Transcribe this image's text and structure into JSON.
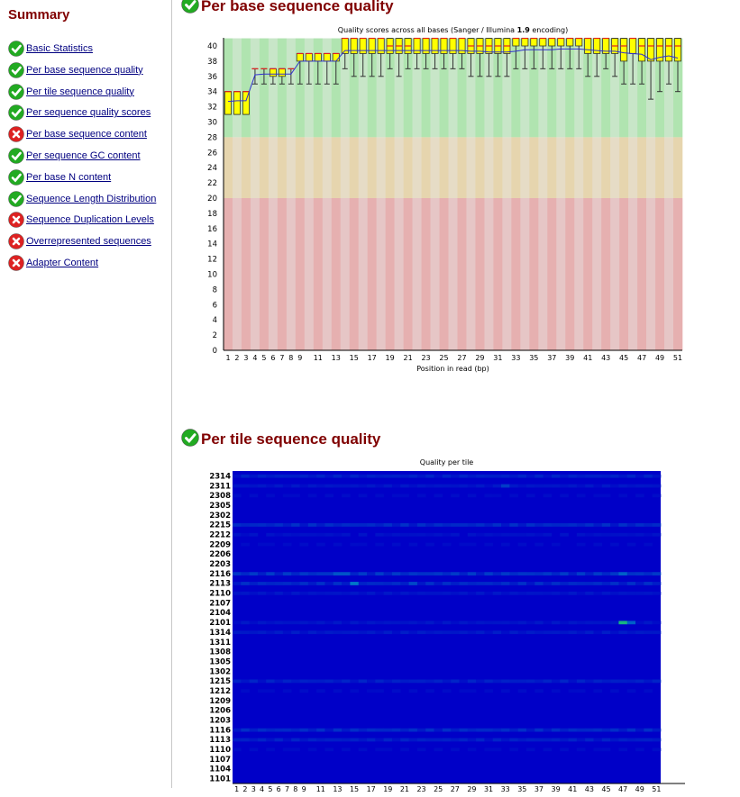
{
  "sidebar": {
    "title": "Summary",
    "items": [
      {
        "label": "Basic Statistics",
        "status": "pass"
      },
      {
        "label": "Per base sequence quality",
        "status": "pass"
      },
      {
        "label": "Per tile sequence quality",
        "status": "pass"
      },
      {
        "label": "Per sequence quality scores",
        "status": "pass"
      },
      {
        "label": "Per base sequence content",
        "status": "fail"
      },
      {
        "label": "Per sequence GC content",
        "status": "pass"
      },
      {
        "label": "Per base N content",
        "status": "pass"
      },
      {
        "label": "Sequence Length Distribution",
        "status": "pass"
      },
      {
        "label": "Sequence Duplication Levels",
        "status": "fail"
      },
      {
        "label": "Overrepresented sequences",
        "status": "fail"
      },
      {
        "label": "Adapter Content",
        "status": "fail"
      }
    ]
  },
  "colors": {
    "pass": "#22aa22",
    "fail": "#dd2222",
    "heading": "#800000",
    "link": "#000080",
    "box": "#ffff00",
    "median": "#e02020",
    "mean": "#3030d0"
  },
  "sections": [
    {
      "title": "Per base sequence quality",
      "status": "pass"
    },
    {
      "title": "Per tile sequence quality",
      "status": "pass"
    }
  ],
  "chart_data": [
    {
      "type": "boxplot",
      "title_pre": "Quality scores across all bases (Sanger / Illumina ",
      "title_bold": "1.9",
      "title_post": " encoding)",
      "xlabel": "Position in read (bp)",
      "ylabel": "",
      "ylim": [
        0,
        41
      ],
      "yticks": [
        0,
        2,
        4,
        6,
        8,
        10,
        12,
        14,
        16,
        18,
        20,
        22,
        24,
        26,
        28,
        30,
        32,
        34,
        36,
        38,
        40
      ],
      "xtick_labels": [
        "1",
        "2",
        "3",
        "4",
        "5",
        "6",
        "7",
        "8",
        "9",
        "11",
        "13",
        "15",
        "17",
        "19",
        "21",
        "23",
        "25",
        "27",
        "29",
        "31",
        "33",
        "35",
        "37",
        "39",
        "41",
        "43",
        "45",
        "47",
        "49",
        "51"
      ],
      "bands": [
        {
          "from": 28,
          "to": 41,
          "zone": "good"
        },
        {
          "from": 20,
          "to": 28,
          "zone": "reasonable"
        },
        {
          "from": 0,
          "to": 20,
          "zone": "poor"
        }
      ],
      "positions": [
        1,
        2,
        3,
        4,
        5,
        6,
        7,
        8,
        9,
        10,
        11,
        12,
        13,
        14,
        15,
        16,
        17,
        18,
        19,
        20,
        21,
        22,
        23,
        24,
        25,
        26,
        27,
        28,
        29,
        30,
        31,
        32,
        33,
        34,
        35,
        36,
        37,
        38,
        39,
        40,
        41,
        42,
        43,
        44,
        45,
        46,
        47,
        48,
        49,
        50,
        51
      ],
      "q1": [
        31,
        31,
        31,
        37,
        37,
        36,
        36,
        37,
        38,
        38,
        38,
        38,
        38,
        39,
        39,
        39,
        39,
        39,
        39,
        39,
        39,
        39,
        39,
        39,
        39,
        39,
        39,
        39,
        39,
        39,
        39,
        39,
        40,
        40,
        40,
        40,
        40,
        40,
        40,
        40,
        39,
        39,
        39,
        39,
        38,
        39,
        38,
        38,
        38,
        38,
        38
      ],
      "q3": [
        34,
        34,
        34,
        37,
        37,
        37,
        37,
        37,
        39,
        39,
        39,
        39,
        39,
        41,
        41,
        41,
        41,
        41,
        41,
        41,
        41,
        41,
        41,
        41,
        41,
        41,
        41,
        41,
        41,
        41,
        41,
        41,
        41,
        41,
        41,
        41,
        41,
        41,
        41,
        41,
        41,
        41,
        41,
        41,
        41,
        41,
        41,
        41,
        41,
        41,
        41
      ],
      "median": [
        34,
        34,
        34,
        37,
        37,
        37,
        37,
        37,
        39,
        39,
        39,
        39,
        39,
        41,
        41,
        41,
        41,
        41,
        40,
        40,
        40,
        41,
        41,
        41,
        41,
        41,
        41,
        40,
        40,
        40,
        40,
        40,
        41,
        41,
        41,
        41,
        41,
        41,
        41,
        41,
        41,
        41,
        41,
        40,
        40,
        41,
        40,
        40,
        40,
        40,
        40
      ],
      "p10": [
        31,
        31,
        31,
        35,
        35,
        35,
        35,
        35,
        35,
        35,
        35,
        35,
        35,
        37,
        36,
        36,
        36,
        36,
        37,
        36,
        37,
        37,
        37,
        37,
        37,
        37,
        37,
        36,
        36,
        36,
        36,
        36,
        37,
        37,
        37,
        37,
        37,
        37,
        37,
        37,
        36,
        36,
        37,
        36,
        35,
        35,
        35,
        33,
        34,
        35,
        34
      ],
      "p90": [
        34,
        34,
        34,
        37,
        37,
        37,
        37,
        37,
        39,
        39,
        39,
        39,
        39,
        41,
        41,
        41,
        41,
        41,
        41,
        41,
        41,
        41,
        41,
        41,
        41,
        41,
        41,
        41,
        41,
        41,
        41,
        41,
        41,
        41,
        41,
        41,
        41,
        41,
        41,
        41,
        41,
        41,
        41,
        41,
        41,
        41,
        41,
        41,
        41,
        41,
        41
      ],
      "mean": [
        32.7,
        32.8,
        32.8,
        36.2,
        36.3,
        36.3,
        36.3,
        36.3,
        38.0,
        38.0,
        38.0,
        38.0,
        38.0,
        39.4,
        39.4,
        39.4,
        39.4,
        39.4,
        39.4,
        39.4,
        39.4,
        39.4,
        39.4,
        39.4,
        39.4,
        39.4,
        39.4,
        39.3,
        39.3,
        39.2,
        39.2,
        39.2,
        39.3,
        39.5,
        39.5,
        39.5,
        39.5,
        39.6,
        39.6,
        39.6,
        39.5,
        39.4,
        39.3,
        39.3,
        39.1,
        39.0,
        38.9,
        38.2,
        38.5,
        38.7,
        38.4
      ]
    },
    {
      "type": "heatmap",
      "title": "Quality per tile",
      "tiles": [
        "2314",
        "2311",
        "2308",
        "2305",
        "2302",
        "2215",
        "2212",
        "2209",
        "2206",
        "2203",
        "2116",
        "2113",
        "2110",
        "2107",
        "2104",
        "2101",
        "1314",
        "1311",
        "1308",
        "1305",
        "1302",
        "1215",
        "1212",
        "1209",
        "1206",
        "1203",
        "1116",
        "1113",
        "1110",
        "1107",
        "1104",
        "1101"
      ],
      "positions_count": 51,
      "xtick_labels": [
        "1",
        "2",
        "3",
        "4",
        "5",
        "6",
        "7",
        "8",
        "9",
        "11",
        "13",
        "15",
        "17",
        "19",
        "21",
        "23",
        "25",
        "27",
        "29",
        "31",
        "33",
        "35",
        "37",
        "39",
        "41",
        "43",
        "45",
        "47",
        "49",
        "51"
      ],
      "row_intensity": [
        0.15,
        0.1,
        0.05,
        0.03,
        0.03,
        0.2,
        0.08,
        0.05,
        0.03,
        0.03,
        0.25,
        0.2,
        0.1,
        0.03,
        0.03,
        0.1,
        0.12,
        0.03,
        0.03,
        0.03,
        0.03,
        0.15,
        0.05,
        0.03,
        0.03,
        0.03,
        0.2,
        0.15,
        0.05,
        0.03,
        0.03,
        0.03
      ],
      "hotspots": [
        {
          "tile": "2101",
          "position": 47,
          "value": 0.8
        },
        {
          "tile": "2101",
          "position": 48,
          "value": 0.4
        },
        {
          "tile": "2116",
          "position": 47,
          "value": 0.4
        },
        {
          "tile": "2113",
          "position": 15,
          "value": 0.5
        },
        {
          "tile": "2116",
          "position": 13,
          "value": 0.35
        },
        {
          "tile": "2116",
          "position": 14,
          "value": 0.35
        },
        {
          "tile": "2113",
          "position": 22,
          "value": 0.3
        },
        {
          "tile": "2311",
          "position": 33,
          "value": 0.25
        }
      ]
    }
  ]
}
